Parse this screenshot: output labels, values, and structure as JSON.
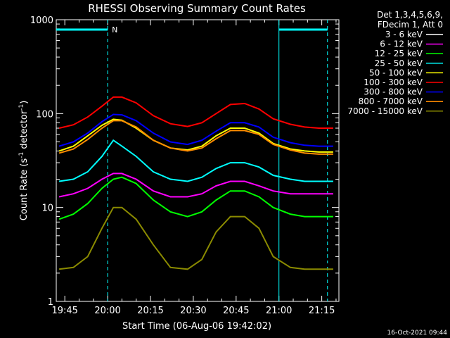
{
  "chart_data": {
    "type": "line",
    "title": "RHESSI Observing Summary Count Rates",
    "xlabel": "Start Time (06-Aug-06 19:42:02)",
    "ylabel_main": "Count Rate (s",
    "ylabel_sup1": "-1",
    "ylabel_mid": " detector",
    "ylabel_sup2": "-1",
    "ylabel_end": ")",
    "xlim": [
      "19:42",
      "21:21"
    ],
    "ylim": [
      1,
      1000
    ],
    "yscale": "log",
    "x_ticks": [
      "19:45",
      "20:00",
      "20:15",
      "20:30",
      "20:45",
      "21:00",
      "21:15"
    ],
    "y_ticks": [
      1,
      10,
      100,
      1000
    ],
    "y_tick_labels": [
      "1",
      "10",
      "100",
      "1000"
    ],
    "legend_position": "right",
    "legend_header": [
      "Det 1,3,4,5,6,9,",
      "FDecim 1, Att 0"
    ],
    "timestamp": "16-Oct-2021 09:44",
    "annotations": {
      "night_bar_color": "#00ffff",
      "night_label": "N",
      "vertical_markers": [
        "20:00",
        "21:00",
        "21:17"
      ],
      "night_segments": [
        [
          "19:42",
          "20:00"
        ],
        [
          "21:00",
          "21:17"
        ]
      ]
    },
    "series": [
      {
        "name": "3 - 6 keV",
        "color": "#000000",
        "values": [
          2.5,
          2.5,
          3,
          6,
          10,
          10,
          8,
          4,
          2.5,
          2.5,
          3,
          6,
          8,
          8,
          6,
          3,
          2.5,
          2.5,
          2.5,
          2.5
        ]
      },
      {
        "name": "6 - 12 keV",
        "color": "#ff00ff",
        "values": [
          13,
          14,
          16,
          20,
          23,
          23,
          20,
          15,
          13,
          13,
          14,
          17,
          19,
          19,
          17,
          15,
          14,
          14,
          14,
          14
        ]
      },
      {
        "name": "12 - 25 keV",
        "color": "#00ff00",
        "values": [
          7.5,
          8.5,
          11,
          16,
          20,
          21,
          18,
          12,
          9,
          8,
          9,
          12,
          15,
          15,
          13,
          10,
          8.5,
          8,
          8,
          8
        ]
      },
      {
        "name": "25 - 50 keV",
        "color": "#00ffff",
        "values": [
          19,
          20,
          24,
          35,
          52,
          45,
          35,
          24,
          20,
          19,
          21,
          26,
          30,
          30,
          27,
          22,
          20,
          19,
          19,
          19
        ]
      },
      {
        "name": "50 - 100 keV",
        "color": "#ffff00",
        "values": [
          40,
          45,
          58,
          75,
          87,
          85,
          70,
          52,
          43,
          41,
          45,
          58,
          70,
          70,
          62,
          48,
          42,
          40,
          39,
          39
        ]
      },
      {
        "name": "100 - 300 keV",
        "color": "#ff0000",
        "values": [
          70,
          76,
          92,
          120,
          150,
          150,
          130,
          95,
          78,
          73,
          80,
          100,
          125,
          128,
          112,
          88,
          77,
          72,
          70,
          70
        ]
      },
      {
        "name": "300 - 800 keV",
        "color": "#0000ff",
        "values": [
          45,
          50,
          62,
          82,
          98,
          97,
          84,
          62,
          50,
          47,
          52,
          65,
          80,
          80,
          72,
          56,
          49,
          46,
          45,
          45
        ]
      },
      {
        "name": "800 - 7000 keV",
        "color": "#ff8c00",
        "values": [
          38,
          42,
          53,
          70,
          84,
          84,
          72,
          52,
          43,
          40,
          43,
          54,
          66,
          66,
          60,
          47,
          41,
          38,
          37,
          37
        ]
      },
      {
        "name": "7000 - 15000 keV",
        "color": "#8b8b00",
        "values": [
          2.2,
          2.3,
          3,
          6,
          10,
          10,
          7.5,
          4,
          2.3,
          2.2,
          2.8,
          5.5,
          8,
          8,
          6,
          3,
          2.3,
          2.2,
          2.2,
          2.2
        ]
      }
    ],
    "x": [
      "19:43",
      "19:48",
      "19:53",
      "19:58",
      "20:02",
      "20:05",
      "20:10",
      "20:16",
      "20:22",
      "20:28",
      "20:33",
      "20:38",
      "20:43",
      "20:48",
      "20:53",
      "20:58",
      "21:04",
      "21:09",
      "21:14",
      "21:19"
    ]
  }
}
